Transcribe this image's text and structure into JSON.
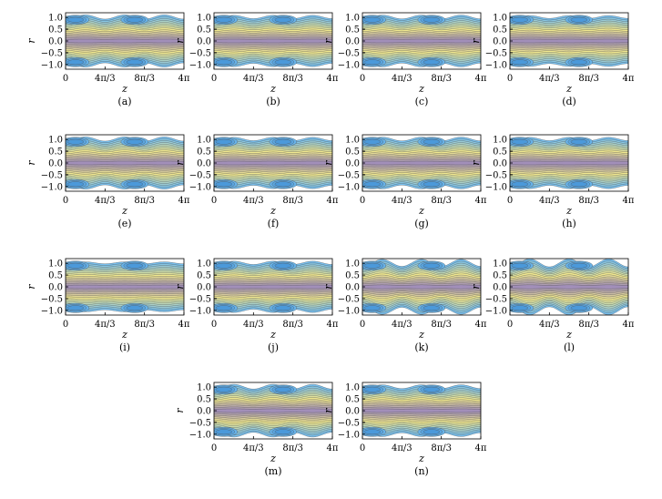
{
  "chart_data": {
    "type": "contour",
    "x_label": "z",
    "y_label": "r",
    "x_ticks": [
      "0",
      "4π/3",
      "8π/3",
      "4π"
    ],
    "x_tick_values": [
      0,
      4.18879,
      8.37758,
      12.56637
    ],
    "y_ticks": [
      "1.0",
      "0.5",
      "0.0",
      "−0.5",
      "−1.0"
    ],
    "y_tick_values": [
      1.0,
      0.5,
      0.0,
      -0.5,
      -1.0
    ],
    "xlim": [
      0,
      12.56637
    ],
    "ylim": [
      -1.2,
      1.2
    ],
    "colors": {
      "outer": "#77c0f0",
      "mid": "#f0e890",
      "inner": "#9580c0",
      "line": "#4a4a4a"
    },
    "panels": [
      {
        "label": "(a)",
        "amplitude": 0.09
      },
      {
        "label": "(b)",
        "amplitude": 0.07
      },
      {
        "label": "(c)",
        "amplitude": 0.08
      },
      {
        "label": "(d)",
        "amplitude": 0.06
      },
      {
        "label": "(e)",
        "amplitude": 0.09
      },
      {
        "label": "(f)",
        "amplitude": 0.07
      },
      {
        "label": "(g)",
        "amplitude": 0.08
      },
      {
        "label": "(h)",
        "amplitude": 0.07
      },
      {
        "label": "(i)",
        "amplitude": 0.04
      },
      {
        "label": "(j)",
        "amplitude": 0.07
      },
      {
        "label": "(k)",
        "amplitude": 0.15
      },
      {
        "label": "(l)",
        "amplitude": 0.17
      },
      {
        "label": "(m)",
        "amplitude": 0.1
      },
      {
        "label": "(n)",
        "amplitude": 0.08
      }
    ]
  }
}
